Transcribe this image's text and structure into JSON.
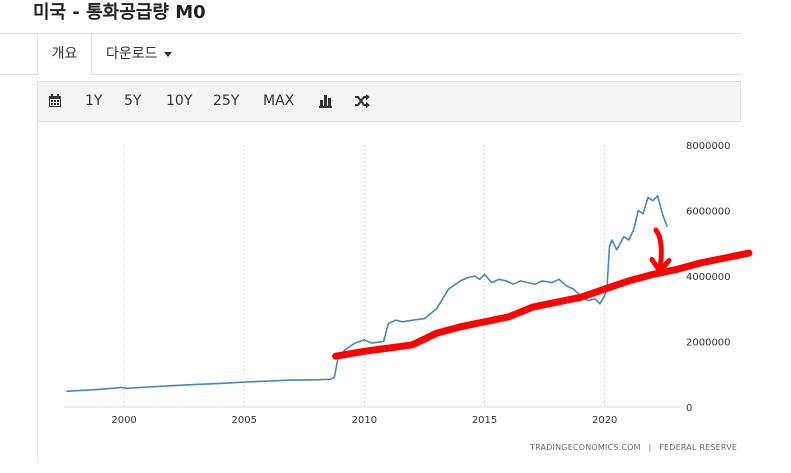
{
  "title": "미국 - 통화공급량 M0",
  "tabs": [
    {
      "label": "개요"
    },
    {
      "label": "다운로드"
    }
  ],
  "toolbar": {
    "buttons": [
      "1Y",
      "5Y",
      "10Y",
      "25Y",
      "MAX"
    ],
    "icons": [
      "calendar-icon",
      "bar-chart-icon",
      "shuffle-icon"
    ]
  },
  "source": {
    "left": "TRADINGECONOMICS.COM",
    "sep": "|",
    "right": "FEDERAL RESERVE"
  },
  "chart_data": {
    "type": "line",
    "x_ticks": [
      "2000",
      "2005",
      "2010",
      "2015",
      "2020"
    ],
    "y_ticks": [
      "0",
      "2000000",
      "4000000",
      "6000000",
      "8000000"
    ],
    "xlim": [
      1997.5,
      2023.3
    ],
    "ylim": [
      0,
      8000000
    ],
    "grid": "vertical dotted",
    "series": [
      {
        "color": "#4a86b8",
        "x": [
          1997.6,
          1999.0,
          1999.9,
          2000.1,
          2001.0,
          2002.0,
          2003.0,
          2004.0,
          2005.0,
          2006.0,
          2007.0,
          2008.0,
          2008.6,
          2008.75,
          2008.9,
          2009.2,
          2009.6,
          2010.0,
          2010.3,
          2010.8,
          2011.0,
          2011.3,
          2011.6,
          2012.0,
          2012.5,
          2013.0,
          2013.5,
          2014.0,
          2014.3,
          2014.6,
          2014.8,
          2015.0,
          2015.3,
          2015.6,
          2015.9,
          2016.2,
          2016.5,
          2016.8,
          2017.1,
          2017.4,
          2017.8,
          2018.1,
          2018.4,
          2018.7,
          2019.0,
          2019.3,
          2019.6,
          2019.8,
          2020.0,
          2020.1,
          2020.2,
          2020.3,
          2020.5,
          2020.8,
          2021.0,
          2021.2,
          2021.4,
          2021.6,
          2021.8,
          2022.0,
          2022.2,
          2022.4,
          2022.6
        ],
        "values": [
          480000,
          540000,
          600000,
          570000,
          610000,
          650000,
          690000,
          720000,
          760000,
          790000,
          820000,
          830000,
          850000,
          900000,
          1500000,
          1750000,
          1950000,
          2050000,
          1950000,
          2000000,
          2550000,
          2650000,
          2600000,
          2650000,
          2700000,
          3000000,
          3600000,
          3850000,
          3950000,
          4000000,
          3900000,
          4050000,
          3800000,
          3900000,
          3850000,
          3750000,
          3850000,
          3800000,
          3750000,
          3850000,
          3800000,
          3900000,
          3700000,
          3600000,
          3400000,
          3250000,
          3300000,
          3150000,
          3400000,
          3700000,
          4900000,
          5100000,
          4800000,
          5200000,
          5100000,
          5400000,
          6000000,
          5900000,
          6400000,
          6300000,
          6450000,
          5900000,
          5500000
        ]
      }
    ],
    "annotations": [
      {
        "type": "hand-drawn trend line",
        "color": "#ff0000",
        "x": [
          2008.8,
          2010.0,
          2011.0,
          2012.0,
          2013.0,
          2014.0,
          2015.0,
          2016.0,
          2017.0,
          2018.0,
          2019.0,
          2020.0,
          2021.0,
          2022.0,
          2023.0,
          2024.0,
          2025.0,
          2026.0
        ],
        "values": [
          1550000,
          1700000,
          1800000,
          1900000,
          2250000,
          2450000,
          2600000,
          2750000,
          3050000,
          3200000,
          3350000,
          3600000,
          3850000,
          4050000,
          4200000,
          4400000,
          4550000,
          4700000
        ]
      },
      {
        "type": "hand-drawn arrow",
        "color": "#ff0000"
      }
    ]
  }
}
